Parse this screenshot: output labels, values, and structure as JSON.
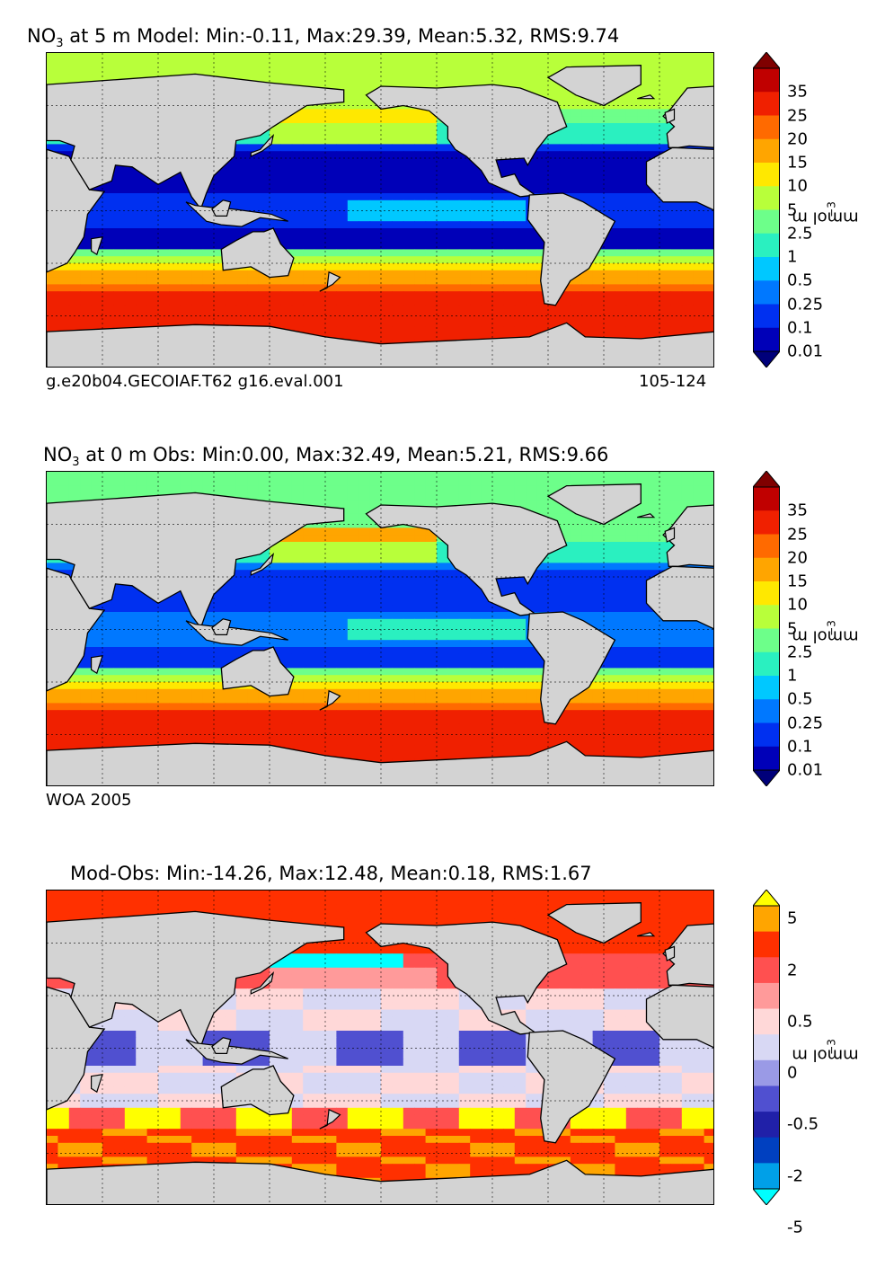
{
  "chart_data": [
    {
      "type": "heatmap",
      "title_prefix": "NO",
      "title_sub": "3",
      "title_rest": " at 5 m Model: Min:-0.11, Max:29.39, Mean:5.32, RMS:9.74",
      "footer_left": "g.e20b04.GECOIAF.T62 g16.eval.001",
      "footer_right": "105-124",
      "colorbar_levels": [
        "35",
        "25",
        "20",
        "15",
        "10",
        "5",
        "2.5",
        "1",
        "0.5",
        "0.25",
        "0.1",
        "0.01"
      ],
      "colorbar_colors": [
        "#7f0000",
        "#c00000",
        "#f02000",
        "#ff6a00",
        "#ffa500",
        "#ffe800",
        "#b8ff3a",
        "#6dff8a",
        "#2af0c0",
        "#00c8ff",
        "#0078ff",
        "#0030f0",
        "#0000b8",
        "#00007a"
      ],
      "unit_main": "mmol m",
      "unit_exp": "−3",
      "stats": {
        "min": -0.11,
        "max": 29.39,
        "mean": 5.32,
        "rms": 9.74
      },
      "depth": "5 m"
    },
    {
      "type": "heatmap",
      "title_prefix": "NO",
      "title_sub": "3",
      "title_rest": " at 0 m Obs: Min:0.00, Max:32.49, Mean:5.21, RMS:9.66",
      "footer_left": "WOA 2005",
      "footer_right": "",
      "colorbar_levels": [
        "35",
        "25",
        "20",
        "15",
        "10",
        "5",
        "2.5",
        "1",
        "0.5",
        "0.25",
        "0.1",
        "0.01"
      ],
      "colorbar_colors": [
        "#7f0000",
        "#c00000",
        "#f02000",
        "#ff6a00",
        "#ffa500",
        "#ffe800",
        "#b8ff3a",
        "#6dff8a",
        "#2af0c0",
        "#00c8ff",
        "#0078ff",
        "#0030f0",
        "#0000b8",
        "#00007a"
      ],
      "unit_main": "mmol m",
      "unit_exp": "−3",
      "stats": {
        "min": 0.0,
        "max": 32.49,
        "mean": 5.21,
        "rms": 9.66
      },
      "depth": "0 m"
    },
    {
      "type": "heatmap",
      "title_prefix": "Mod-Obs: Min:-14.26, Max:12.48, Mean:0.18, RMS:1.67",
      "title_sub": "",
      "title_rest": "",
      "footer_left": "",
      "footer_right": "",
      "colorbar_levels": [
        "5",
        "2",
        "0.5",
        "0",
        "-0.5",
        "-2",
        "-5"
      ],
      "colorbar_colors": [
        "#ffff00",
        "#ffa500",
        "#ff3000",
        "#ff5050",
        "#ff9a9a",
        "#ffd8d8",
        "#d8d8f4",
        "#9a9ae6",
        "#5050d0",
        "#2020a8",
        "#0040c0",
        "#00a0e8",
        "#00ffff"
      ],
      "unit_main": "mmol m",
      "unit_exp": "−3",
      "stats": {
        "min": -14.26,
        "max": 12.48,
        "mean": 0.18,
        "rms": 1.67
      }
    }
  ]
}
